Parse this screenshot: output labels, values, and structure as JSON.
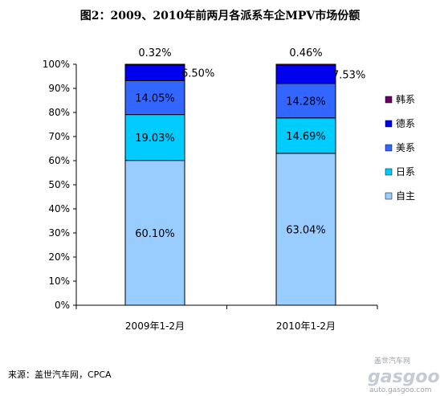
{
  "chart_data": {
    "type": "bar",
    "stacked": true,
    "percent_stacked": true,
    "title": "图2：2009、2010年前两月各派系车企MPV市场份额",
    "categories": [
      "2009年1-2月",
      "2010年1-2月"
    ],
    "series": [
      {
        "name": "自主",
        "values": [
          60.1,
          63.04
        ],
        "labels": [
          "60.10%",
          "63.04%"
        ],
        "color": "#99ccff"
      },
      {
        "name": "日系",
        "values": [
          19.03,
          14.69
        ],
        "labels": [
          "19.03%",
          "14.69%"
        ],
        "color": "#00ccff"
      },
      {
        "name": "美系",
        "values": [
          14.05,
          14.28
        ],
        "labels": [
          "14.05%",
          "14.28%"
        ],
        "color": "#3366ff"
      },
      {
        "name": "德系",
        "values": [
          6.5,
          7.53
        ],
        "labels": [
          "6.50%",
          "7.53%"
        ],
        "color": "#0000ee"
      },
      {
        "name": "韩系",
        "values": [
          0.32,
          0.46
        ],
        "labels": [
          "0.32%",
          "0.46%"
        ],
        "color": "#660066"
      }
    ],
    "ylim": [
      0,
      100
    ],
    "yticks": [
      "0%",
      "10%",
      "20%",
      "30%",
      "40%",
      "50%",
      "60%",
      "70%",
      "80%",
      "90%",
      "100%"
    ],
    "grid": false,
    "legend_position": "right"
  },
  "source_text": "来源：盖世汽车网，CPCA",
  "watermark": {
    "brand": "gasgoo",
    "tagline": "盖世汽车网",
    "url": "auto.gasgoo.com"
  }
}
